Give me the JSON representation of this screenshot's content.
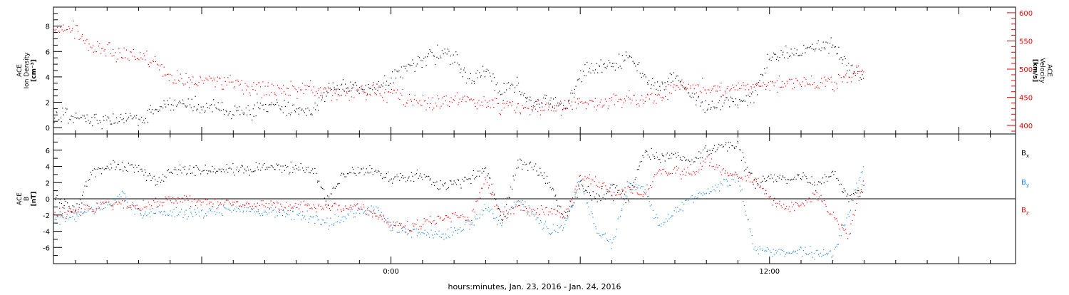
{
  "colors": {
    "black": "#000000",
    "red": "#ff0000",
    "blue": "#1e88e5"
  },
  "xaxis": {
    "label": "hours:minutes, Jan. 23, 2016 - Jan. 24, 2016",
    "tick_labels": [
      {
        "hour": 24,
        "label": "0:00"
      },
      {
        "hour": 36,
        "label": "12:00"
      }
    ],
    "xlim_hours": [
      13.3,
      43.8
    ]
  },
  "chart_data": [
    {
      "type": "scatter",
      "panel": "top",
      "ylabel_left": [
        "ACE",
        "Ion Density",
        "[cm⁻³]"
      ],
      "ylabel_right": [
        "ACE",
        "Velocity",
        "[km/s]"
      ],
      "ylim_left": [
        -0.5,
        9.5
      ],
      "ylim_right": [
        385,
        610
      ],
      "yticks_left": [
        0,
        2,
        4,
        6,
        8
      ],
      "yticks_right": [
        400,
        450,
        500,
        550,
        600
      ],
      "series": [
        {
          "color": "black",
          "axis": "left",
          "x": [
            13.3,
            14.0,
            15.0,
            16.0,
            16.5,
            17.0,
            17.5,
            18.0,
            19.0,
            19.5,
            20.0,
            21.0,
            21.5,
            22.0,
            22.5,
            23.0,
            23.5,
            24.0,
            24.5,
            25.0,
            25.5,
            26.0,
            26.5,
            27.0,
            27.5,
            28.0,
            28.5,
            29.0,
            29.5,
            30.0,
            30.5,
            31.0,
            31.5,
            32.0,
            32.5,
            33.0,
            33.5,
            34.0,
            34.5,
            35.0,
            35.5,
            36.0,
            36.5,
            37.0,
            37.5,
            38.0,
            38.5,
            39.0
          ],
          "y": [
            1.0,
            0.8,
            0.6,
            0.7,
            1.5,
            2.0,
            1.8,
            1.8,
            1.3,
            1.2,
            1.6,
            1.5,
            1.5,
            3.0,
            3.2,
            3.0,
            3.2,
            4.0,
            4.8,
            5.5,
            5.8,
            5.5,
            3.8,
            4.5,
            2.8,
            3.5,
            1.8,
            2.2,
            1.5,
            4.2,
            5.0,
            4.8,
            5.8,
            4.0,
            3.0,
            4.2,
            2.5,
            1.8,
            2.0,
            2.0,
            2.5,
            5.5,
            5.8,
            6.0,
            6.5,
            6.5,
            5.0,
            3.5
          ]
        },
        {
          "color": "red",
          "axis": "right",
          "x": [
            13.3,
            13.8,
            14.0,
            14.5,
            15.0,
            15.5,
            16.0,
            16.5,
            17.0,
            17.5,
            18.0,
            19.0,
            19.5,
            20.0,
            21.0,
            21.5,
            22.0,
            23.0,
            23.5,
            24.0,
            24.5,
            25.0,
            26.0,
            27.0,
            28.0,
            29.0,
            30.0,
            31.0,
            32.0,
            32.5,
            33.0,
            34.0,
            35.0,
            36.0,
            37.0,
            38.0,
            38.5,
            39.0
          ],
          "y": [
            565,
            575,
            570,
            535,
            535,
            525,
            525,
            510,
            485,
            480,
            480,
            480,
            465,
            465,
            465,
            466,
            460,
            460,
            458,
            458,
            445,
            442,
            445,
            440,
            432,
            432,
            438,
            442,
            448,
            452,
            470,
            467,
            467,
            473,
            476,
            473,
            490,
            497
          ]
        }
      ]
    },
    {
      "type": "scatter",
      "panel": "bottom",
      "ylabel_left": [
        "ACE",
        "B",
        "[nT]"
      ],
      "ylim": [
        -8,
        8
      ],
      "yticks": [
        -6,
        -4,
        -2,
        0,
        2,
        4,
        6
      ],
      "zero_line": true,
      "legend": [
        {
          "label": "Bx",
          "base": "B",
          "sub": "x",
          "color": "black"
        },
        {
          "label": "By",
          "base": "B",
          "sub": "y",
          "color": "blue"
        },
        {
          "label": "Bz",
          "base": "B",
          "sub": "z",
          "color": "red"
        }
      ],
      "series": [
        {
          "color": "black",
          "x": [
            13.3,
            14.0,
            14.5,
            15.0,
            16.0,
            16.5,
            17.0,
            18.0,
            19.0,
            20.0,
            21.0,
            21.5,
            22.0,
            22.5,
            23.0,
            23.5,
            24.0,
            24.5,
            25.0,
            25.5,
            26.0,
            26.5,
            27.0,
            27.5,
            28.0,
            28.5,
            29.0,
            29.5,
            30.0,
            30.5,
            31.0,
            31.5,
            32.0,
            32.5,
            33.0,
            33.5,
            34.0,
            34.5,
            35.0,
            35.5,
            36.0,
            36.5,
            37.0,
            37.5,
            38.0,
            38.5,
            39.0
          ],
          "y": [
            0.3,
            -1.5,
            3.2,
            4.0,
            4.0,
            2.0,
            3.5,
            3.6,
            3.7,
            3.8,
            3.8,
            3.6,
            0.0,
            3.2,
            3.5,
            3.3,
            2.5,
            2.5,
            3.0,
            1.5,
            2.0,
            2.5,
            3.8,
            -2.5,
            4.2,
            4.0,
            2.0,
            -2.5,
            2.0,
            0.0,
            1.5,
            0.0,
            6.0,
            5.0,
            5.5,
            4.5,
            6.0,
            6.8,
            6.5,
            2.0,
            2.5,
            2.5,
            3.0,
            1.5,
            3.5,
            0.0,
            1.5
          ]
        },
        {
          "color": "blue",
          "x": [
            13.3,
            14.0,
            15.0,
            15.5,
            16.0,
            16.5,
            17.0,
            18.0,
            19.0,
            20.0,
            21.0,
            22.0,
            23.0,
            23.5,
            24.0,
            24.5,
            25.0,
            25.5,
            26.0,
            26.5,
            27.0,
            27.5,
            28.0,
            28.5,
            29.0,
            29.5,
            30.0,
            30.5,
            31.0,
            31.5,
            32.0,
            32.5,
            33.0,
            33.5,
            34.0,
            34.5,
            35.0,
            35.5,
            36.0,
            36.5,
            37.0,
            37.5,
            38.0,
            38.5,
            39.0
          ],
          "y": [
            -2.5,
            -2.0,
            -0.5,
            0.5,
            -2.0,
            -1.5,
            -1.8,
            -1.8,
            -1.2,
            -1.5,
            -1.8,
            -3.0,
            -1.5,
            -1.0,
            -3.5,
            -4.0,
            -4.0,
            -4.5,
            -4.0,
            -3.0,
            -1.0,
            -3.0,
            0.0,
            -2.0,
            -4.0,
            -3.5,
            2.5,
            -4.0,
            -5.5,
            1.5,
            1.5,
            -3.5,
            -1.5,
            0.0,
            1.0,
            2.0,
            2.5,
            -6.0,
            -6.3,
            -6.5,
            -6.5,
            -6.7,
            -6.8,
            -2.0,
            4.5
          ]
        },
        {
          "color": "red",
          "x": [
            13.3,
            14.0,
            15.0,
            16.0,
            17.0,
            18.0,
            19.0,
            20.0,
            21.0,
            22.0,
            23.0,
            24.0,
            24.5,
            25.0,
            25.5,
            26.0,
            26.5,
            27.0,
            27.5,
            28.0,
            28.5,
            29.0,
            29.5,
            30.0,
            30.5,
            31.0,
            31.5,
            32.0,
            32.5,
            33.0,
            33.5,
            34.0,
            34.5,
            35.0,
            35.5,
            36.0,
            36.5,
            37.0,
            37.5,
            38.0,
            38.5,
            39.0
          ],
          "y": [
            -2.0,
            -1.5,
            -0.5,
            -1.0,
            0.0,
            -0.3,
            -0.5,
            -0.8,
            -1.0,
            -1.0,
            -1.0,
            -3.0,
            -3.5,
            -3.0,
            -2.5,
            -2.0,
            -2.5,
            2.5,
            -2.0,
            -1.0,
            -1.5,
            -1.5,
            -2.0,
            3.0,
            2.0,
            0.5,
            1.5,
            0.5,
            3.5,
            3.5,
            3.0,
            5.0,
            3.5,
            3.0,
            2.5,
            0.0,
            -1.0,
            -0.5,
            0.5,
            -2.0,
            -4.5,
            3.0
          ]
        }
      ]
    }
  ]
}
